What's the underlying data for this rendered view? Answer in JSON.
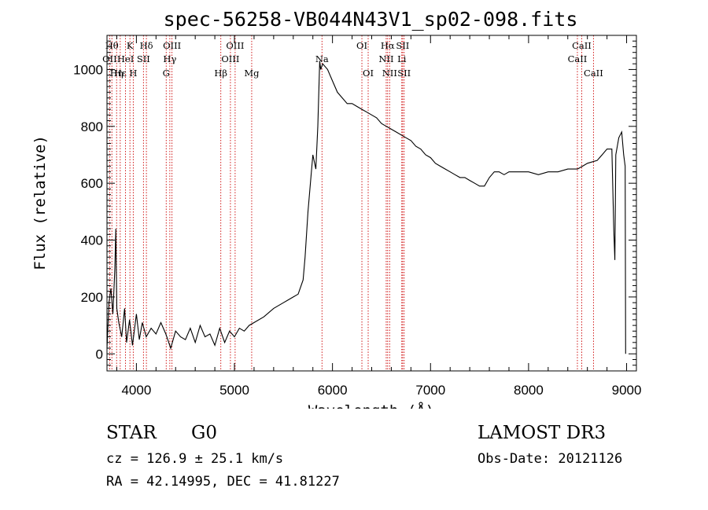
{
  "chart_data": {
    "type": "line",
    "title": "spec-56258-VB044N43V1_sp02-098.fits",
    "xlabel": "Wavelength (Å)",
    "ylabel": "Flux (relative)",
    "xlim": [
      3700,
      9100
    ],
    "ylim": [
      -60,
      1120
    ],
    "x_ticks": [
      4000,
      5000,
      6000,
      7000,
      8000,
      9000
    ],
    "y_ticks": [
      0,
      200,
      400,
      600,
      800,
      1000
    ],
    "grid": false,
    "series": [
      {
        "name": "flux",
        "points": [
          [
            3700,
            20
          ],
          [
            3720,
            180
          ],
          [
            3740,
            230
          ],
          [
            3760,
            140
          ],
          [
            3780,
            300
          ],
          [
            3790,
            440
          ],
          [
            3800,
            160
          ],
          [
            3820,
            110
          ],
          [
            3850,
            60
          ],
          [
            3880,
            160
          ],
          [
            3900,
            40
          ],
          [
            3930,
            120
          ],
          [
            3960,
            30
          ],
          [
            4000,
            140
          ],
          [
            4030,
            50
          ],
          [
            4060,
            110
          ],
          [
            4100,
            60
          ],
          [
            4150,
            90
          ],
          [
            4200,
            70
          ],
          [
            4250,
            110
          ],
          [
            4300,
            70
          ],
          [
            4350,
            20
          ],
          [
            4400,
            80
          ],
          [
            4450,
            60
          ],
          [
            4500,
            50
          ],
          [
            4550,
            90
          ],
          [
            4600,
            40
          ],
          [
            4650,
            100
          ],
          [
            4700,
            60
          ],
          [
            4750,
            70
          ],
          [
            4800,
            30
          ],
          [
            4850,
            90
          ],
          [
            4900,
            40
          ],
          [
            4950,
            80
          ],
          [
            5000,
            60
          ],
          [
            5050,
            90
          ],
          [
            5100,
            80
          ],
          [
            5150,
            100
          ],
          [
            5200,
            110
          ],
          [
            5300,
            130
          ],
          [
            5400,
            160
          ],
          [
            5500,
            180
          ],
          [
            5550,
            190
          ],
          [
            5600,
            200
          ],
          [
            5650,
            210
          ],
          [
            5700,
            260
          ],
          [
            5720,
            340
          ],
          [
            5750,
            500
          ],
          [
            5780,
            620
          ],
          [
            5800,
            700
          ],
          [
            5830,
            650
          ],
          [
            5850,
            800
          ],
          [
            5870,
            1030
          ],
          [
            5880,
            1000
          ],
          [
            5900,
            1020
          ],
          [
            5950,
            1000
          ],
          [
            6000,
            960
          ],
          [
            6050,
            920
          ],
          [
            6100,
            900
          ],
          [
            6150,
            880
          ],
          [
            6200,
            880
          ],
          [
            6250,
            870
          ],
          [
            6300,
            860
          ],
          [
            6350,
            850
          ],
          [
            6400,
            840
          ],
          [
            6450,
            830
          ],
          [
            6500,
            810
          ],
          [
            6550,
            800
          ],
          [
            6600,
            790
          ],
          [
            6650,
            780
          ],
          [
            6700,
            770
          ],
          [
            6750,
            760
          ],
          [
            6800,
            750
          ],
          [
            6850,
            730
          ],
          [
            6900,
            720
          ],
          [
            6950,
            700
          ],
          [
            7000,
            690
          ],
          [
            7050,
            670
          ],
          [
            7100,
            660
          ],
          [
            7150,
            650
          ],
          [
            7200,
            640
          ],
          [
            7250,
            630
          ],
          [
            7300,
            620
          ],
          [
            7350,
            620
          ],
          [
            7400,
            610
          ],
          [
            7450,
            600
          ],
          [
            7500,
            590
          ],
          [
            7550,
            590
          ],
          [
            7600,
            620
          ],
          [
            7650,
            640
          ],
          [
            7700,
            640
          ],
          [
            7750,
            630
          ],
          [
            7800,
            640
          ],
          [
            7900,
            640
          ],
          [
            8000,
            640
          ],
          [
            8100,
            630
          ],
          [
            8200,
            640
          ],
          [
            8300,
            640
          ],
          [
            8400,
            650
          ],
          [
            8500,
            650
          ],
          [
            8550,
            660
          ],
          [
            8600,
            670
          ],
          [
            8700,
            680
          ],
          [
            8750,
            700
          ],
          [
            8800,
            720
          ],
          [
            8850,
            720
          ],
          [
            8870,
            430
          ],
          [
            8880,
            330
          ],
          [
            8890,
            700
          ],
          [
            8920,
            760
          ],
          [
            8950,
            780
          ],
          [
            8970,
            700
          ],
          [
            8985,
            660
          ],
          [
            8990,
            0
          ]
        ]
      }
    ],
    "lines": [
      {
        "wave": 3727,
        "label": "OII",
        "row": 2
      },
      {
        "wave": 3750,
        "label": "Hθ",
        "row": 1
      },
      {
        "wave": 3798,
        "label": "Hη",
        "row": 3
      },
      {
        "wave": 3835,
        "label": "Hε",
        "row": 3
      },
      {
        "wave": 3889,
        "label": "HeI",
        "row": 2
      },
      {
        "wave": 3934,
        "label": "K",
        "row": 1
      },
      {
        "wave": 3968,
        "label": "H",
        "row": 3
      },
      {
        "wave": 4072,
        "label": "SII",
        "row": 2
      },
      {
        "wave": 4102,
        "label": "Hδ",
        "row": 1
      },
      {
        "wave": 4304,
        "label": "G",
        "row": 3
      },
      {
        "wave": 4341,
        "label": "Hγ",
        "row": 2
      },
      {
        "wave": 4363,
        "label": "OIII",
        "row": 1
      },
      {
        "wave": 4861,
        "label": "Hβ",
        "row": 3
      },
      {
        "wave": 4959,
        "label": "OIII",
        "row": 2
      },
      {
        "wave": 5007,
        "label": "OIII",
        "row": 1
      },
      {
        "wave": 5176,
        "label": "Mg",
        "row": 3
      },
      {
        "wave": 5893,
        "label": "Na",
        "row": 2
      },
      {
        "wave": 6300,
        "label": "OI",
        "row": 1
      },
      {
        "wave": 6364,
        "label": "OI",
        "row": 3
      },
      {
        "wave": 6548,
        "label": "NII",
        "row": 2
      },
      {
        "wave": 6563,
        "label": "Hα",
        "row": 1
      },
      {
        "wave": 6583,
        "label": "NII",
        "row": 3
      },
      {
        "wave": 6707,
        "label": "Li",
        "row": 2
      },
      {
        "wave": 6716,
        "label": "SII",
        "row": 1
      },
      {
        "wave": 6731,
        "label": "SII",
        "row": 3
      },
      {
        "wave": 8498,
        "label": "CaII",
        "row": 2
      },
      {
        "wave": 8542,
        "label": "CaII",
        "row": 1
      },
      {
        "wave": 8662,
        "label": "CaII",
        "row": 3
      }
    ]
  },
  "info": {
    "class_label": "STAR",
    "subclass_label": "G0",
    "survey": "LAMOST DR3",
    "redshift": "cz = 126.9 ± 25.1 km/s",
    "obs_date": "Obs-Date: 20121126",
    "coords": "RA =  42.14995, DEC =  41.81227"
  },
  "colors": {
    "axis": "#000000",
    "spectrum": "#000000",
    "line_markers": "#cc0000"
  }
}
